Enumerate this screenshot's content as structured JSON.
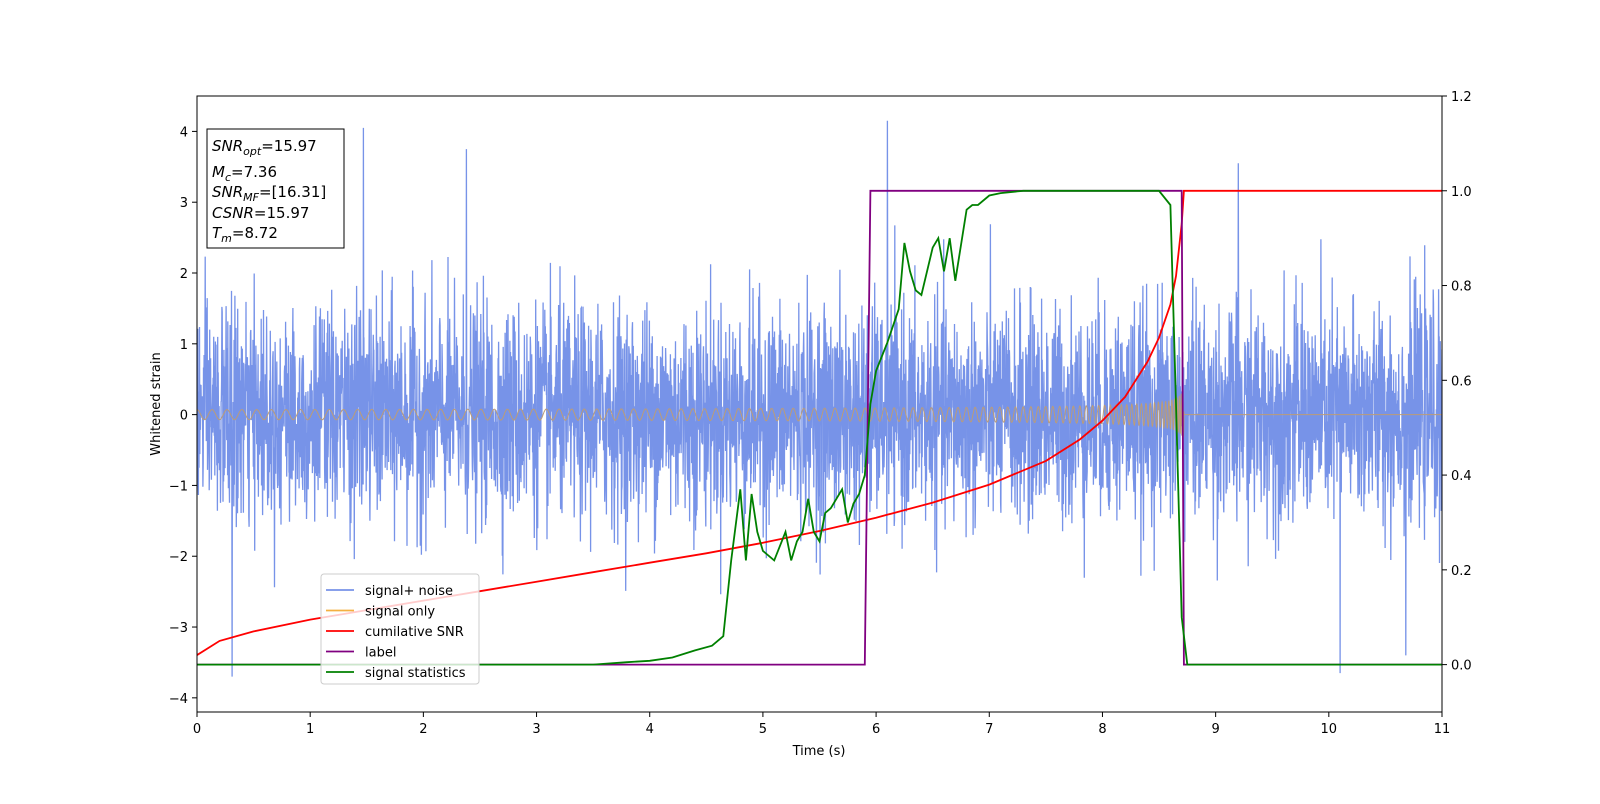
{
  "chart_data": {
    "type": "line",
    "xlabel": "Time (s)",
    "ylabel": "Whitened strain",
    "xlim": [
      0,
      11
    ],
    "ylim": [
      -4.2,
      4.5
    ],
    "y2lim": [
      -0.1,
      1.2
    ],
    "x_ticks": [
      "0",
      "1",
      "2",
      "3",
      "4",
      "5",
      "6",
      "7",
      "8",
      "9",
      "10",
      "11"
    ],
    "y_ticks": [
      "−4",
      "−3",
      "−2",
      "−1",
      "0",
      "1",
      "2",
      "3",
      "4"
    ],
    "y2_ticks": [
      "0.0",
      "0.2",
      "0.4",
      "0.6",
      "0.8",
      "1.0",
      "1.2"
    ],
    "colors": {
      "signal_noise": "#7793e8",
      "signal_only": "#f5b041",
      "signal_only_overlap": "#bb9c78",
      "cumulative_snr": "#ff0000",
      "label": "#800080",
      "signal_statistics": "#008000"
    },
    "legend_position": "lower-left",
    "legend": [
      {
        "label": "signal+ noise",
        "color": "#7793e8"
      },
      {
        "label": "signal only",
        "color": "#f5b041"
      },
      {
        "label": "cumilative SNR",
        "color": "#ff0000"
      },
      {
        "label": "label",
        "color": "#800080"
      },
      {
        "label": "signal statistics",
        "color": "#008000"
      }
    ],
    "info_box": {
      "snr_opt_base": "SNR",
      "snr_opt_sub": "opt",
      "snr_opt_val": "=15.97",
      "mc_base": "M",
      "mc_sub": "c",
      "mc_val": "=7.36",
      "snr_mf_base": "SNR",
      "snr_mf_sub": "MF",
      "snr_mf_val": "=[16.31]",
      "csnr_base": "CSNR",
      "csnr_val": "=15.97",
      "tm_base": "T",
      "tm_sub": "m",
      "tm_val": "=8.72"
    },
    "series": [
      {
        "name": "signal+ noise",
        "axis": "left",
        "description_only": false,
        "noise_sigma": 0.75,
        "x_range": [
          0,
          11
        ],
        "notable_peaks": [
          [
            0.31,
            -3.7
          ],
          [
            1.47,
            4.05
          ],
          [
            2.38,
            3.75
          ],
          [
            6.1,
            4.15
          ],
          [
            9.2,
            3.55
          ],
          [
            10.1,
            -3.65
          ],
          [
            10.68,
            -3.4
          ]
        ]
      },
      {
        "name": "signal only",
        "axis": "left",
        "chirp": {
          "t_start": 0,
          "t_merge": 8.72,
          "amp_start": 0.07,
          "amp_merge": 1.0,
          "freq_start": 7.5
        }
      },
      {
        "name": "cumilative SNR",
        "axis": "right",
        "x": [
          0,
          0.2,
          0.5,
          1.0,
          1.5,
          2.0,
          2.5,
          3.0,
          3.5,
          4.0,
          4.5,
          5.0,
          5.5,
          6.0,
          6.5,
          7.0,
          7.5,
          7.8,
          8.0,
          8.2,
          8.4,
          8.5,
          8.6,
          8.65,
          8.7,
          8.72,
          11.0
        ],
        "y": [
          0.02,
          0.05,
          0.07,
          0.095,
          0.115,
          0.135,
          0.155,
          0.175,
          0.195,
          0.215,
          0.235,
          0.257,
          0.282,
          0.31,
          0.342,
          0.38,
          0.43,
          0.475,
          0.515,
          0.565,
          0.64,
          0.69,
          0.76,
          0.82,
          0.93,
          1.0,
          1.0
        ]
      },
      {
        "name": "label",
        "axis": "right",
        "x": [
          0,
          5.9,
          5.95,
          8.7,
          8.72,
          11.0
        ],
        "y": [
          0,
          0,
          1,
          1,
          0,
          0
        ]
      },
      {
        "name": "signal statistics",
        "axis": "right",
        "x": [
          0,
          3.5,
          3.8,
          4.0,
          4.2,
          4.4,
          4.55,
          4.65,
          4.72,
          4.8,
          4.85,
          4.9,
          4.95,
          5.0,
          5.1,
          5.2,
          5.25,
          5.3,
          5.35,
          5.4,
          5.45,
          5.5,
          5.55,
          5.6,
          5.7,
          5.75,
          5.8,
          5.85,
          5.9,
          5.95,
          6.0,
          6.1,
          6.2,
          6.25,
          6.3,
          6.35,
          6.4,
          6.5,
          6.55,
          6.6,
          6.65,
          6.7,
          6.8,
          6.85,
          6.9,
          7.0,
          7.1,
          7.3,
          7.6,
          8.0,
          8.3,
          8.5,
          8.6,
          8.65,
          8.7,
          8.75,
          11.0
        ],
        "y": [
          0,
          0,
          0.005,
          0.008,
          0.015,
          0.03,
          0.04,
          0.06,
          0.22,
          0.37,
          0.22,
          0.36,
          0.28,
          0.24,
          0.22,
          0.28,
          0.22,
          0.26,
          0.28,
          0.35,
          0.28,
          0.26,
          0.32,
          0.33,
          0.37,
          0.3,
          0.34,
          0.36,
          0.4,
          0.55,
          0.62,
          0.68,
          0.75,
          0.89,
          0.83,
          0.79,
          0.78,
          0.88,
          0.9,
          0.83,
          0.9,
          0.81,
          0.96,
          0.97,
          0.97,
          0.99,
          0.995,
          1.0,
          1.0,
          1.0,
          1.0,
          1.0,
          0.97,
          0.55,
          0.1,
          0.0,
          0.0
        ]
      }
    ]
  }
}
